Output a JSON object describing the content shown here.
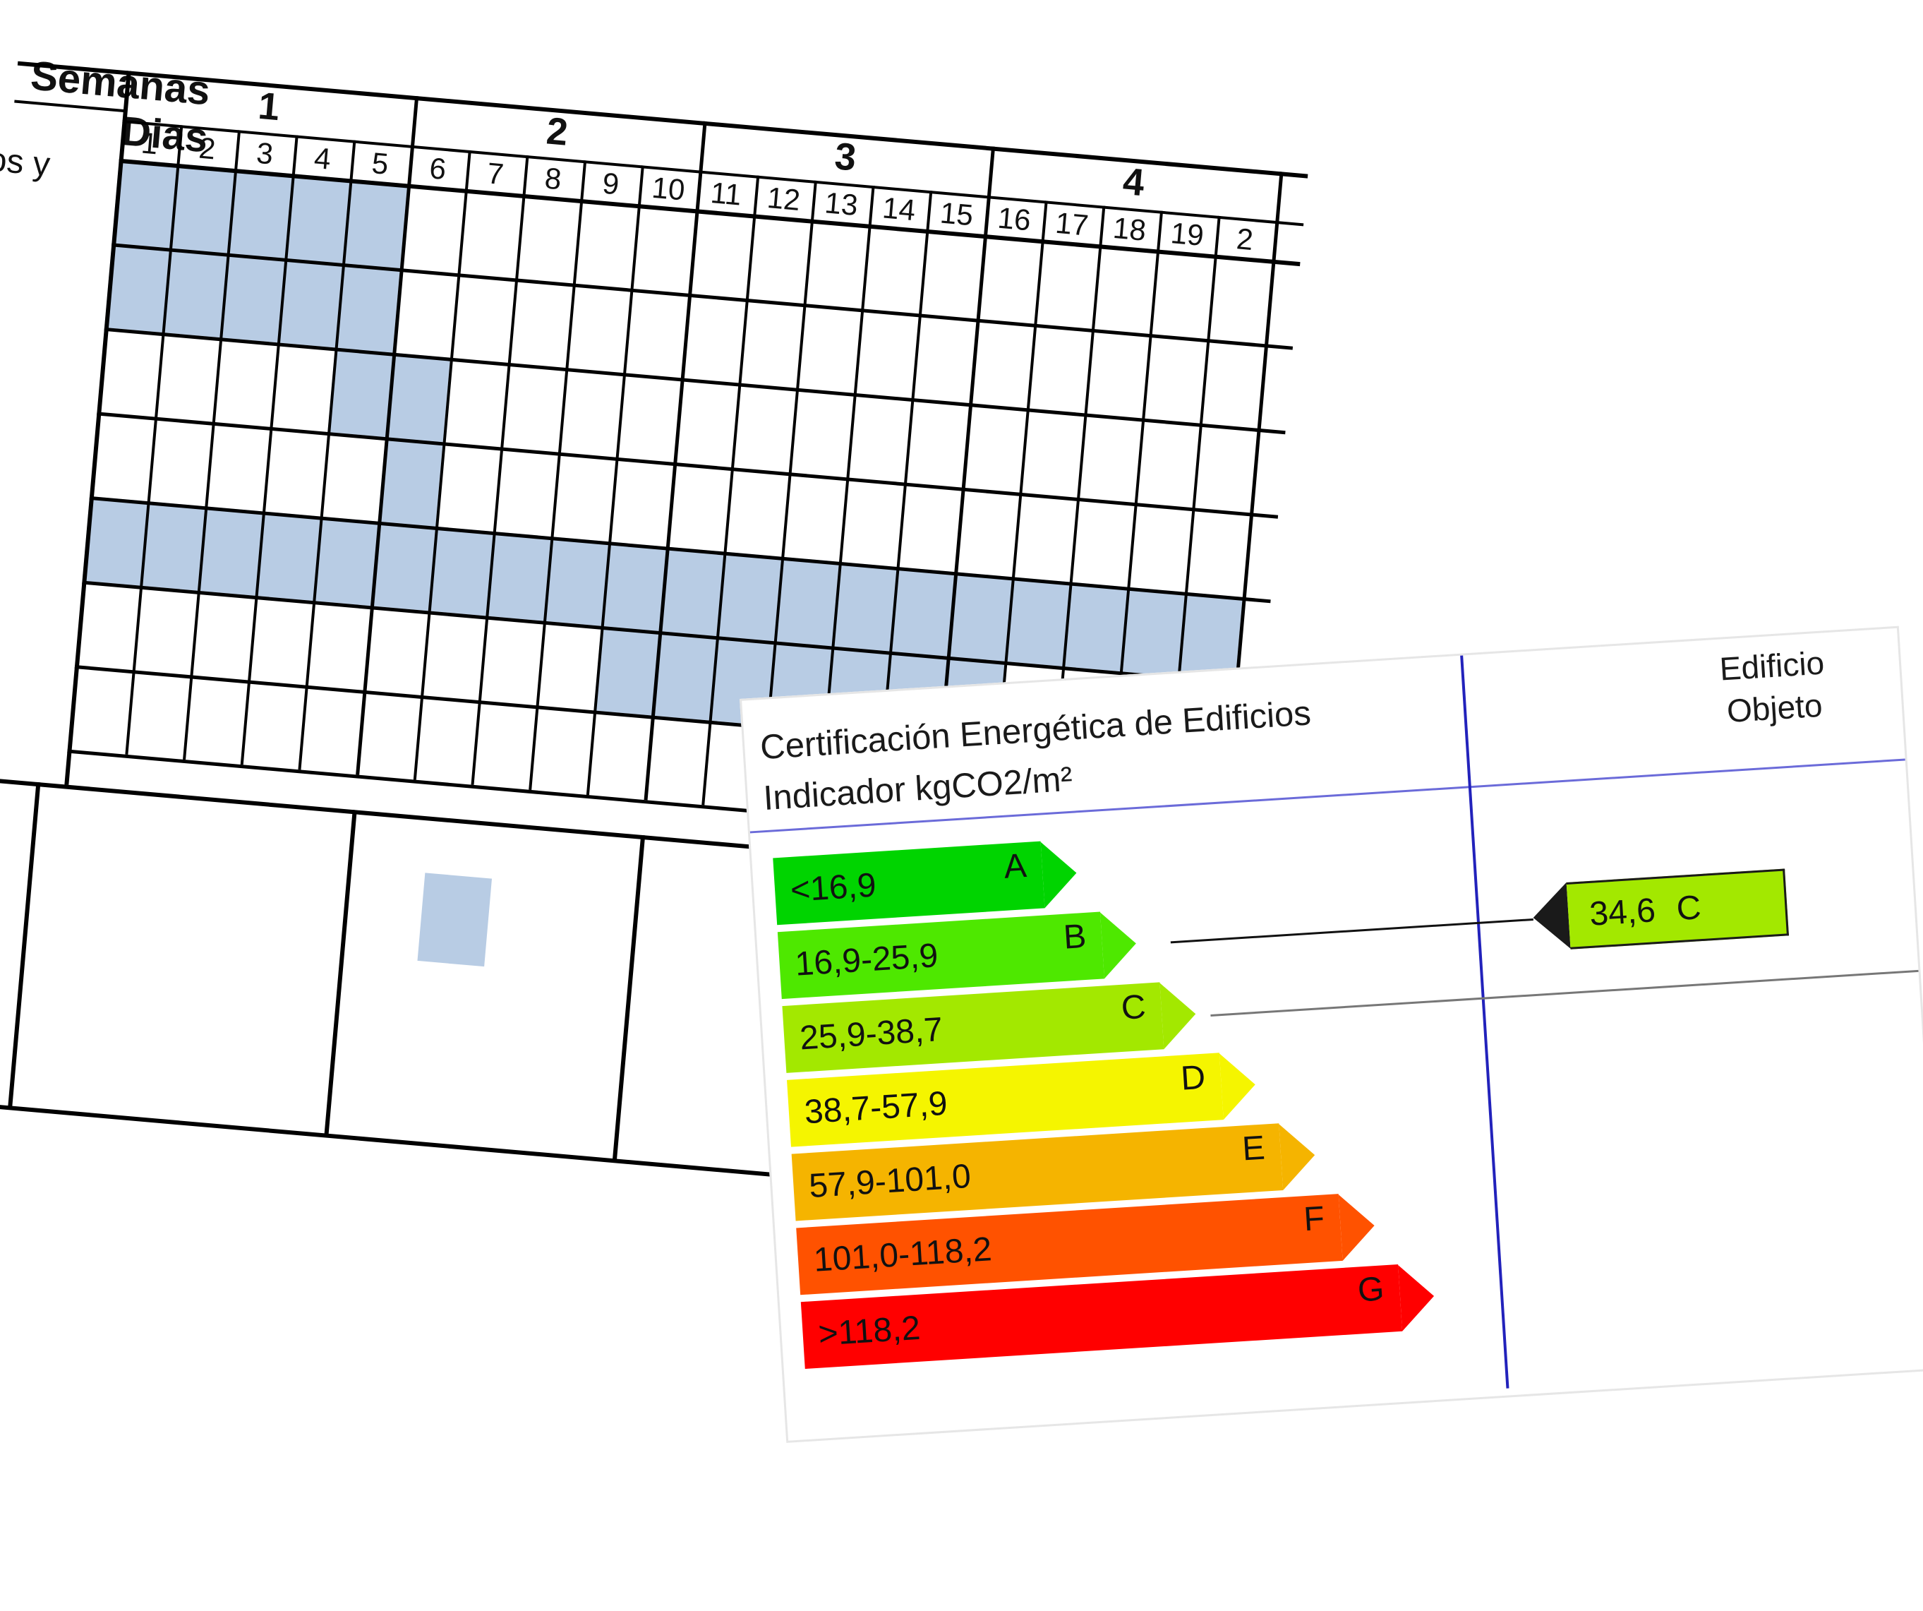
{
  "gantt": {
    "semanas_label": "Semanas",
    "dias_label": "Dias",
    "row_label": "os y",
    "weeks": [
      "1",
      "2",
      "3",
      "4"
    ],
    "days": [
      "1",
      "2",
      "3",
      "4",
      "5",
      "6",
      "7",
      "8",
      "9",
      "10",
      "11",
      "12",
      "13",
      "14",
      "15",
      "16",
      "17",
      "18",
      "19",
      "2"
    ],
    "fill_color": "#b8cce4"
  },
  "certificate": {
    "title_line1": "Certificación Energética de Edificios",
    "title_line2": "Indicador kgCO2/m²",
    "column_line1": "Edificio",
    "column_line2": "Objeto",
    "bands": [
      {
        "range": "<16,9",
        "letter": "A",
        "color": "#00d400"
      },
      {
        "range": "16,9-25,9",
        "letter": "B",
        "color": "#4ee800"
      },
      {
        "range": "25,9-38,7",
        "letter": "C",
        "color": "#a3e800"
      },
      {
        "range": "38,7-57,9",
        "letter": "D",
        "color": "#f5f500"
      },
      {
        "range": "57,9-101,0",
        "letter": "E",
        "color": "#f5b400"
      },
      {
        "range": "101,0-118,2",
        "letter": "F",
        "color": "#ff5200"
      },
      {
        "range": ">118,2",
        "letter": "G",
        "color": "#ff0000"
      }
    ],
    "result": {
      "value": "34,6",
      "letter": "C",
      "color": "#a3e800"
    }
  }
}
